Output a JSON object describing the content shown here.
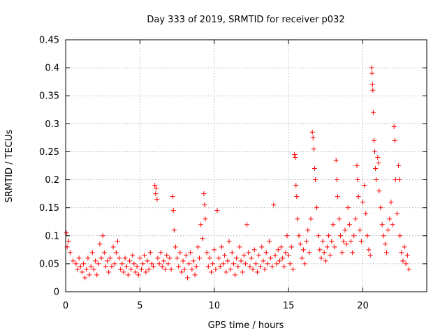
{
  "chart_data": {
    "type": "scatter",
    "title": "Day 333 of 2019, SRMTID for receiver p032",
    "xlabel": "GPS time / hours",
    "ylabel": "SRMTID / TECUs",
    "xlim": [
      0,
      24.3
    ],
    "ylim": [
      0,
      0.45
    ],
    "xticks": [
      0,
      5,
      10,
      15,
      20
    ],
    "xtick_labels": [
      "0",
      "5",
      "10",
      "15",
      "20"
    ],
    "yticks": [
      0,
      0.05,
      0.1,
      0.15,
      0.2,
      0.25,
      0.3,
      0.35,
      0.4,
      0.45
    ],
    "ytick_labels": [
      "0",
      "0.05",
      "0.1",
      "0.15",
      "0.2",
      "0.25",
      "0.3",
      "0.35",
      "0.4",
      "0.45"
    ],
    "grid": true,
    "marker": "+",
    "color": "#ff0000",
    "series": [
      {
        "name": "SRMTID",
        "points": [
          [
            0.05,
            0.105
          ],
          [
            0.1,
            0.08
          ],
          [
            0.2,
            0.09
          ],
          [
            0.3,
            0.07
          ],
          [
            0.5,
            0.055
          ],
          [
            0.7,
            0.05
          ],
          [
            0.8,
            0.04
          ],
          [
            0.9,
            0.06
          ],
          [
            1.0,
            0.045
          ],
          [
            1.1,
            0.035
          ],
          [
            1.2,
            0.05
          ],
          [
            1.3,
            0.025
          ],
          [
            1.4,
            0.04
          ],
          [
            1.5,
            0.06
          ],
          [
            1.6,
            0.03
          ],
          [
            1.7,
            0.045
          ],
          [
            1.8,
            0.07
          ],
          [
            1.9,
            0.04
          ],
          [
            2.0,
            0.055
          ],
          [
            2.1,
            0.03
          ],
          [
            2.2,
            0.05
          ],
          [
            2.3,
            0.085
          ],
          [
            2.4,
            0.06
          ],
          [
            2.5,
            0.1
          ],
          [
            2.6,
            0.07
          ],
          [
            2.7,
            0.045
          ],
          [
            2.8,
            0.055
          ],
          [
            2.9,
            0.035
          ],
          [
            3.0,
            0.06
          ],
          [
            3.1,
            0.045
          ],
          [
            3.2,
            0.08
          ],
          [
            3.3,
            0.05
          ],
          [
            3.4,
            0.07
          ],
          [
            3.5,
            0.09
          ],
          [
            3.6,
            0.06
          ],
          [
            3.7,
            0.04
          ],
          [
            3.8,
            0.05
          ],
          [
            3.9,
            0.035
          ],
          [
            4.0,
            0.06
          ],
          [
            4.1,
            0.045
          ],
          [
            4.2,
            0.03
          ],
          [
            4.3,
            0.055
          ],
          [
            4.4,
            0.04
          ],
          [
            4.5,
            0.065
          ],
          [
            4.6,
            0.05
          ],
          [
            4.7,
            0.035
          ],
          [
            4.8,
            0.045
          ],
          [
            4.9,
            0.03
          ],
          [
            5.0,
            0.06
          ],
          [
            5.1,
            0.04
          ],
          [
            5.2,
            0.05
          ],
          [
            5.3,
            0.065
          ],
          [
            5.4,
            0.035
          ],
          [
            5.5,
            0.055
          ],
          [
            5.6,
            0.04
          ],
          [
            5.7,
            0.07
          ],
          [
            5.8,
            0.05
          ],
          [
            5.9,
            0.045
          ],
          [
            6.0,
            0.19
          ],
          [
            6.05,
            0.175
          ],
          [
            6.1,
            0.185
          ],
          [
            6.15,
            0.165
          ],
          [
            6.2,
            0.06
          ],
          [
            6.3,
            0.05
          ],
          [
            6.4,
            0.07
          ],
          [
            6.5,
            0.045
          ],
          [
            6.6,
            0.055
          ],
          [
            6.7,
            0.04
          ],
          [
            6.8,
            0.065
          ],
          [
            6.9,
            0.05
          ],
          [
            7.0,
            0.06
          ],
          [
            7.1,
            0.04
          ],
          [
            7.2,
            0.17
          ],
          [
            7.25,
            0.145
          ],
          [
            7.3,
            0.11
          ],
          [
            7.4,
            0.08
          ],
          [
            7.5,
            0.06
          ],
          [
            7.6,
            0.045
          ],
          [
            7.7,
            0.07
          ],
          [
            7.8,
            0.035
          ],
          [
            7.9,
            0.055
          ],
          [
            8.0,
            0.04
          ],
          [
            8.1,
            0.065
          ],
          [
            8.2,
            0.025
          ],
          [
            8.3,
            0.05
          ],
          [
            8.4,
            0.07
          ],
          [
            8.5,
            0.04
          ],
          [
            8.6,
            0.055
          ],
          [
            8.7,
            0.03
          ],
          [
            8.8,
            0.045
          ],
          [
            8.9,
            0.08
          ],
          [
            9.0,
            0.06
          ],
          [
            9.1,
            0.12
          ],
          [
            9.2,
            0.095
          ],
          [
            9.3,
            0.175
          ],
          [
            9.35,
            0.155
          ],
          [
            9.4,
            0.13
          ],
          [
            9.5,
            0.07
          ],
          [
            9.6,
            0.045
          ],
          [
            9.7,
            0.06
          ],
          [
            9.8,
            0.035
          ],
          [
            9.9,
            0.05
          ],
          [
            10.0,
            0.075
          ],
          [
            10.1,
            0.04
          ],
          [
            10.2,
            0.145
          ],
          [
            10.3,
            0.06
          ],
          [
            10.4,
            0.045
          ],
          [
            10.5,
            0.08
          ],
          [
            10.6,
            0.05
          ],
          [
            10.7,
            0.065
          ],
          [
            10.8,
            0.035
          ],
          [
            10.9,
            0.055
          ],
          [
            11.0,
            0.09
          ],
          [
            11.1,
            0.04
          ],
          [
            11.2,
            0.07
          ],
          [
            11.3,
            0.05
          ],
          [
            11.4,
            0.03
          ],
          [
            11.5,
            0.06
          ],
          [
            11.6,
            0.045
          ],
          [
            11.7,
            0.08
          ],
          [
            11.8,
            0.055
          ],
          [
            11.9,
            0.035
          ],
          [
            12.0,
            0.065
          ],
          [
            12.1,
            0.05
          ],
          [
            12.2,
            0.12
          ],
          [
            12.3,
            0.07
          ],
          [
            12.4,
            0.045
          ],
          [
            12.5,
            0.06
          ],
          [
            12.6,
            0.04
          ],
          [
            12.7,
            0.075
          ],
          [
            12.8,
            0.05
          ],
          [
            12.9,
            0.035
          ],
          [
            13.0,
            0.065
          ],
          [
            13.1,
            0.045
          ],
          [
            13.2,
            0.08
          ],
          [
            13.3,
            0.055
          ],
          [
            13.4,
            0.04
          ],
          [
            13.5,
            0.07
          ],
          [
            13.6,
            0.05
          ],
          [
            13.7,
            0.09
          ],
          [
            13.8,
            0.06
          ],
          [
            13.9,
            0.045
          ],
          [
            14.0,
            0.155
          ],
          [
            14.1,
            0.065
          ],
          [
            14.2,
            0.05
          ],
          [
            14.3,
            0.075
          ],
          [
            14.4,
            0.055
          ],
          [
            14.5,
            0.08
          ],
          [
            14.6,
            0.06
          ],
          [
            14.7,
            0.045
          ],
          [
            14.8,
            0.07
          ],
          [
            14.9,
            0.1
          ],
          [
            15.0,
            0.065
          ],
          [
            15.1,
            0.05
          ],
          [
            15.2,
            0.08
          ],
          [
            15.3,
            0.04
          ],
          [
            15.4,
            0.245
          ],
          [
            15.45,
            0.24
          ],
          [
            15.5,
            0.19
          ],
          [
            15.55,
            0.17
          ],
          [
            15.6,
            0.13
          ],
          [
            15.7,
            0.1
          ],
          [
            15.8,
            0.085
          ],
          [
            15.9,
            0.06
          ],
          [
            16.0,
            0.075
          ],
          [
            16.1,
            0.05
          ],
          [
            16.2,
            0.09
          ],
          [
            16.3,
            0.11
          ],
          [
            16.4,
            0.07
          ],
          [
            16.5,
            0.13
          ],
          [
            16.6,
            0.285
          ],
          [
            16.65,
            0.275
          ],
          [
            16.7,
            0.255
          ],
          [
            16.75,
            0.22
          ],
          [
            16.8,
            0.2
          ],
          [
            16.9,
            0.15
          ],
          [
            17.0,
            0.1
          ],
          [
            17.1,
            0.075
          ],
          [
            17.2,
            0.06
          ],
          [
            17.3,
            0.09
          ],
          [
            17.4,
            0.07
          ],
          [
            17.5,
            0.055
          ],
          [
            17.6,
            0.08
          ],
          [
            17.7,
            0.1
          ],
          [
            17.8,
            0.065
          ],
          [
            17.9,
            0.09
          ],
          [
            18.0,
            0.12
          ],
          [
            18.1,
            0.08
          ],
          [
            18.2,
            0.235
          ],
          [
            18.25,
            0.2
          ],
          [
            18.3,
            0.17
          ],
          [
            18.4,
            0.13
          ],
          [
            18.5,
            0.1
          ],
          [
            18.6,
            0.07
          ],
          [
            18.7,
            0.09
          ],
          [
            18.8,
            0.11
          ],
          [
            18.9,
            0.085
          ],
          [
            19.0,
            0.15
          ],
          [
            19.1,
            0.12
          ],
          [
            19.2,
            0.09
          ],
          [
            19.3,
            0.07
          ],
          [
            19.4,
            0.1
          ],
          [
            19.5,
            0.13
          ],
          [
            19.6,
            0.225
          ],
          [
            19.65,
            0.2
          ],
          [
            19.7,
            0.17
          ],
          [
            19.8,
            0.11
          ],
          [
            19.9,
            0.09
          ],
          [
            20.0,
            0.16
          ],
          [
            20.1,
            0.19
          ],
          [
            20.2,
            0.14
          ],
          [
            20.3,
            0.1
          ],
          [
            20.4,
            0.075
          ],
          [
            20.5,
            0.065
          ],
          [
            20.6,
            0.4
          ],
          [
            20.62,
            0.39
          ],
          [
            20.65,
            0.37
          ],
          [
            20.67,
            0.36
          ],
          [
            20.7,
            0.32
          ],
          [
            20.75,
            0.27
          ],
          [
            20.8,
            0.25
          ],
          [
            20.85,
            0.22
          ],
          [
            20.9,
            0.2
          ],
          [
            21.0,
            0.24
          ],
          [
            21.05,
            0.23
          ],
          [
            21.1,
            0.18
          ],
          [
            21.2,
            0.15
          ],
          [
            21.3,
            0.12
          ],
          [
            21.4,
            0.1
          ],
          [
            21.5,
            0.085
          ],
          [
            21.6,
            0.07
          ],
          [
            21.7,
            0.11
          ],
          [
            21.8,
            0.13
          ],
          [
            21.9,
            0.16
          ],
          [
            22.0,
            0.12
          ],
          [
            22.1,
            0.295
          ],
          [
            22.15,
            0.27
          ],
          [
            22.2,
            0.2
          ],
          [
            22.3,
            0.14
          ],
          [
            22.4,
            0.225
          ],
          [
            22.45,
            0.2
          ],
          [
            22.5,
            0.1
          ],
          [
            22.6,
            0.07
          ],
          [
            22.7,
            0.055
          ],
          [
            22.8,
            0.08
          ],
          [
            22.9,
            0.05
          ],
          [
            23.0,
            0.065
          ],
          [
            23.1,
            0.04
          ]
        ]
      }
    ]
  }
}
